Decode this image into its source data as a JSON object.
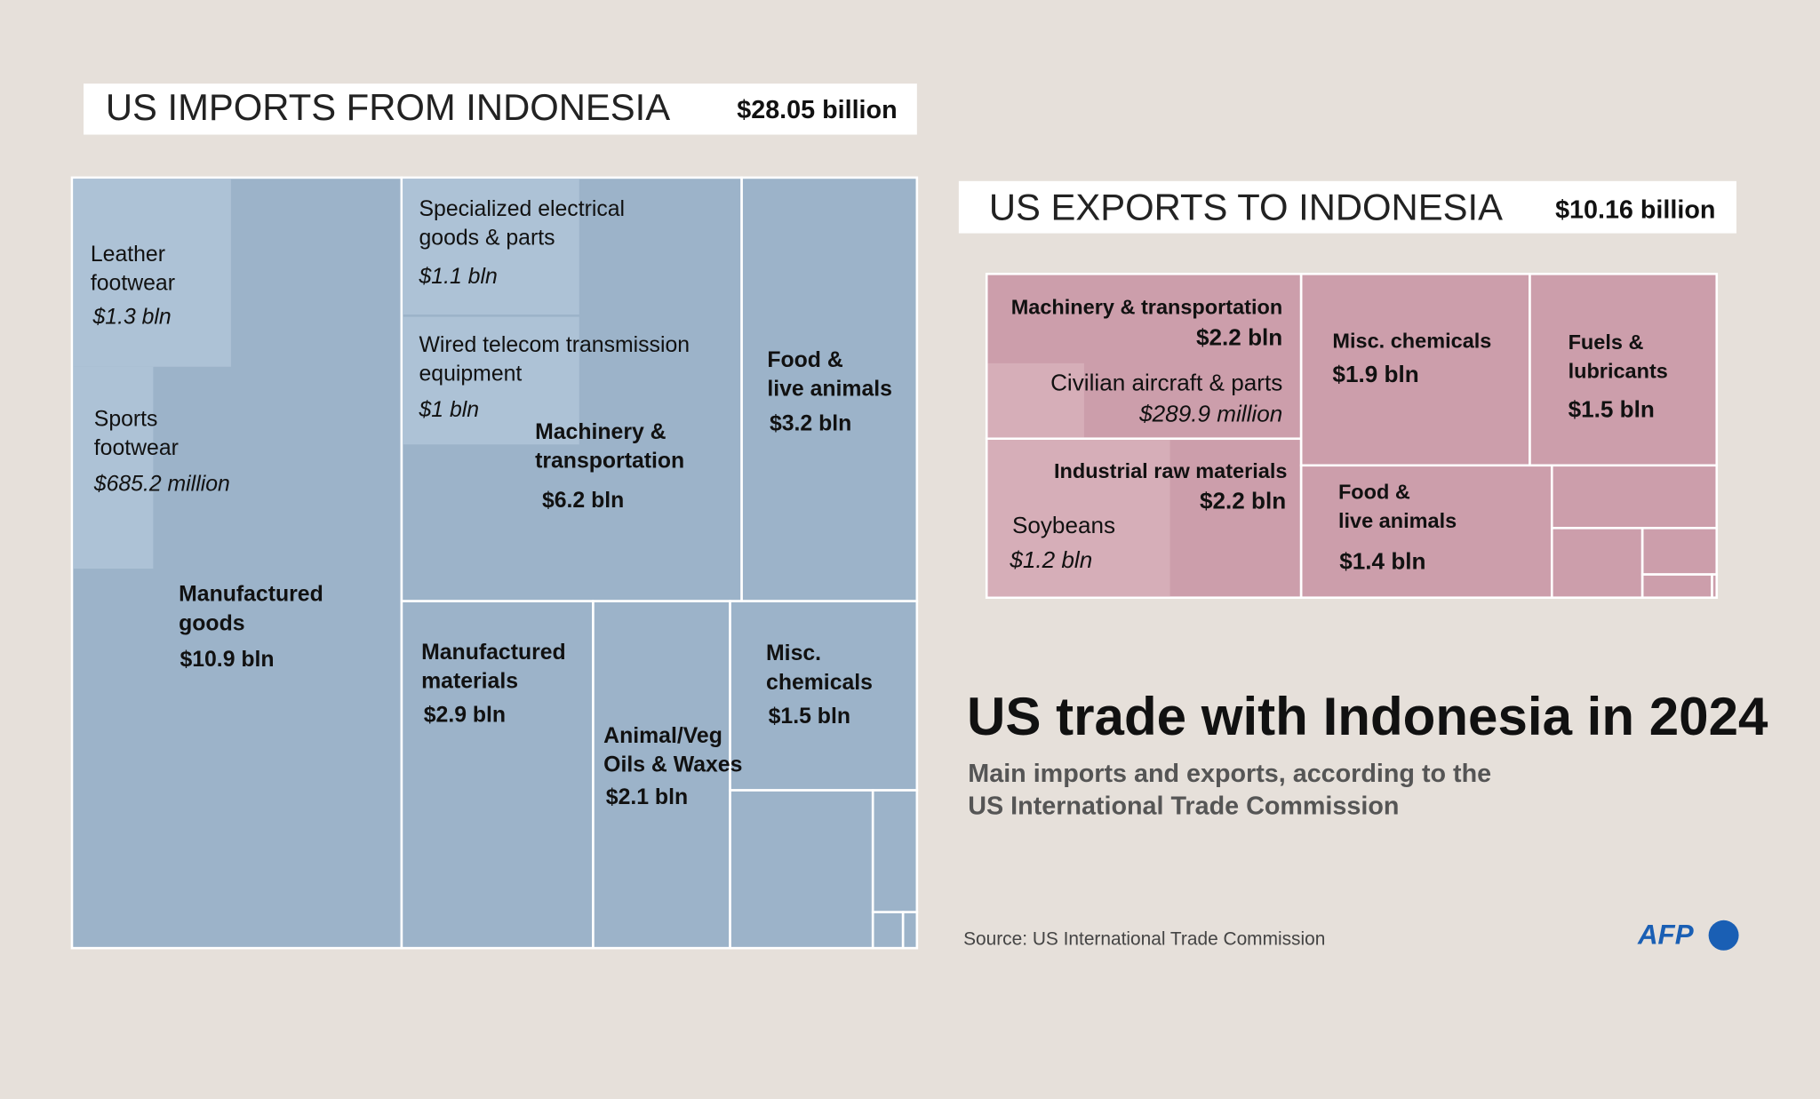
{
  "header": {
    "title": "US trade with Indonesia in 2024",
    "subtitle": [
      "Main imports and exports, according to the",
      "US International Trade Commission"
    ],
    "source": "Source: US International Trade Commission",
    "logo": "AFP"
  },
  "imports": {
    "title": "US IMPORTS FROM INDONESIA",
    "total": "$28.05 billion",
    "cells": [
      {
        "label": [
          "Manufactured",
          "goods"
        ],
        "value": "$10.9 bln"
      },
      {
        "label": [
          "Leather",
          "footwear"
        ],
        "value": "$1.3 bln"
      },
      {
        "label": [
          "Sports",
          "footwear"
        ],
        "value": "$685.2 million"
      },
      {
        "label": [
          "Machinery &",
          "transportation"
        ],
        "value": "$6.2 bln"
      },
      {
        "label": [
          "Specialized electrical",
          "goods & parts"
        ],
        "value": "$1.1 bln"
      },
      {
        "label": [
          "Wired telecom transmission",
          "equipment"
        ],
        "value": "$1 bln"
      },
      {
        "label": [
          "Food &",
          "live animals"
        ],
        "value": "$3.2 bln"
      },
      {
        "label": [
          "Manufactured",
          "materials"
        ],
        "value": "$2.9 bln"
      },
      {
        "label": [
          "Animal/Veg",
          "Oils & Waxes"
        ],
        "value": "$2.1 bln"
      },
      {
        "label": [
          "Misc.",
          "chemicals"
        ],
        "value": "$1.5 bln"
      }
    ]
  },
  "exports": {
    "title": "US EXPORTS TO INDONESIA",
    "total": "$10.16 billion",
    "cells": [
      {
        "label": [
          "Machinery & transportation"
        ],
        "value": "$2.2 bln"
      },
      {
        "label": [
          "Civilian aircraft & parts"
        ],
        "value": "$289.9 million"
      },
      {
        "label": [
          "Industrial raw materials"
        ],
        "value": "$2.2 bln"
      },
      {
        "label": [
          "Soybeans"
        ],
        "value": "$1.2 bln"
      },
      {
        "label": [
          "Misc. chemicals"
        ],
        "value": "$1.9 bln"
      },
      {
        "label": [
          "Fuels &",
          "lubricants"
        ],
        "value": "$1.5 bln"
      },
      {
        "label": [
          "Food &",
          "live animals"
        ],
        "value": "$1.4 bln"
      }
    ]
  }
}
